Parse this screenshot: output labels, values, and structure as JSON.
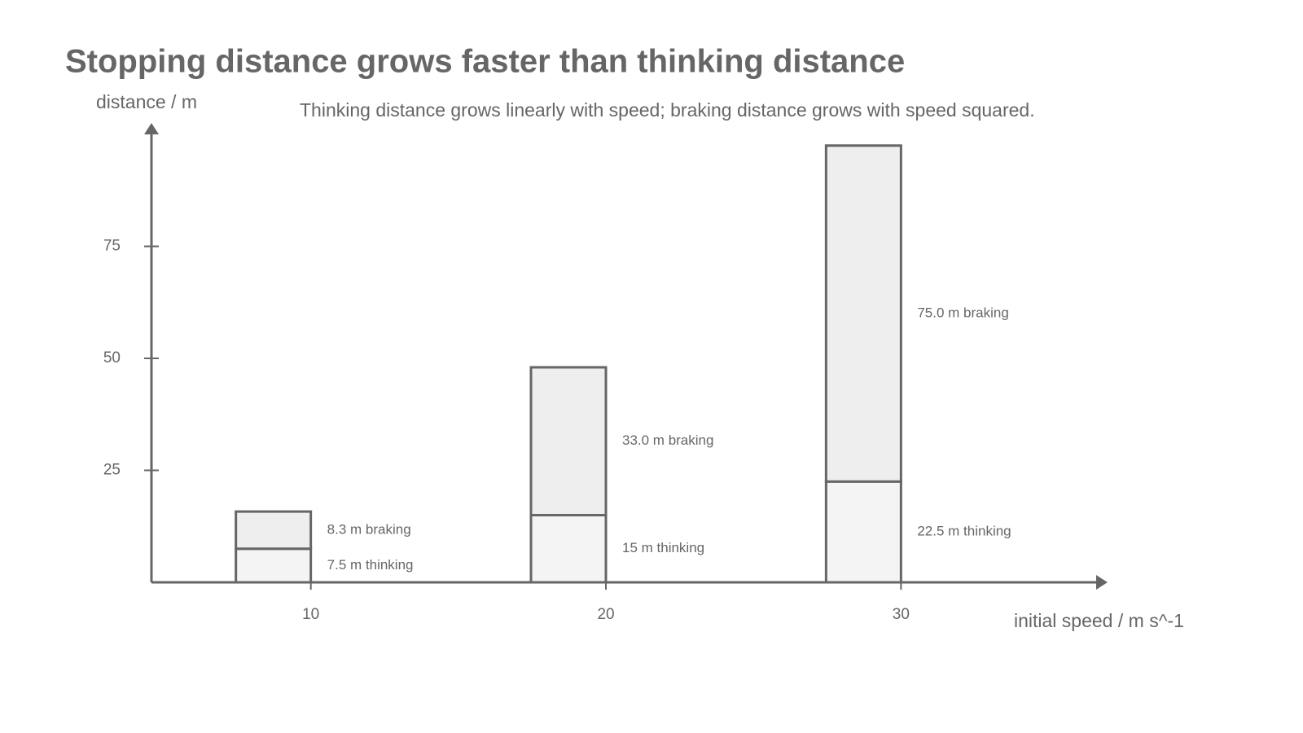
{
  "chart_data": {
    "type": "bar",
    "stacked": true,
    "title": "Stopping distance grows faster than thinking distance",
    "subtitle": "Thinking distance grows linearly with speed; braking distance grows with speed squared.",
    "y_label": "distance / m",
    "x_label": "initial speed / m s^-1",
    "x": [
      10,
      20,
      30
    ],
    "xlim": [
      4.6,
      37
    ],
    "xticks": [
      10,
      20,
      30
    ],
    "ylim": [
      0,
      100
    ],
    "yticks": [
      25,
      50,
      75
    ],
    "series": [
      {
        "name": "thinking",
        "color": "#f4f4f4",
        "values": [
          7.5,
          15,
          22.5
        ],
        "value_labels": [
          "7.5 m thinking",
          "15 m thinking",
          "22.5 m thinking"
        ]
      },
      {
        "name": "braking",
        "color": "#eeeeee",
        "values": [
          8.3,
          33.0,
          75.0
        ],
        "value_labels": [
          "8.3 m braking",
          "33.0 m braking",
          "75.0 m braking"
        ]
      }
    ]
  }
}
